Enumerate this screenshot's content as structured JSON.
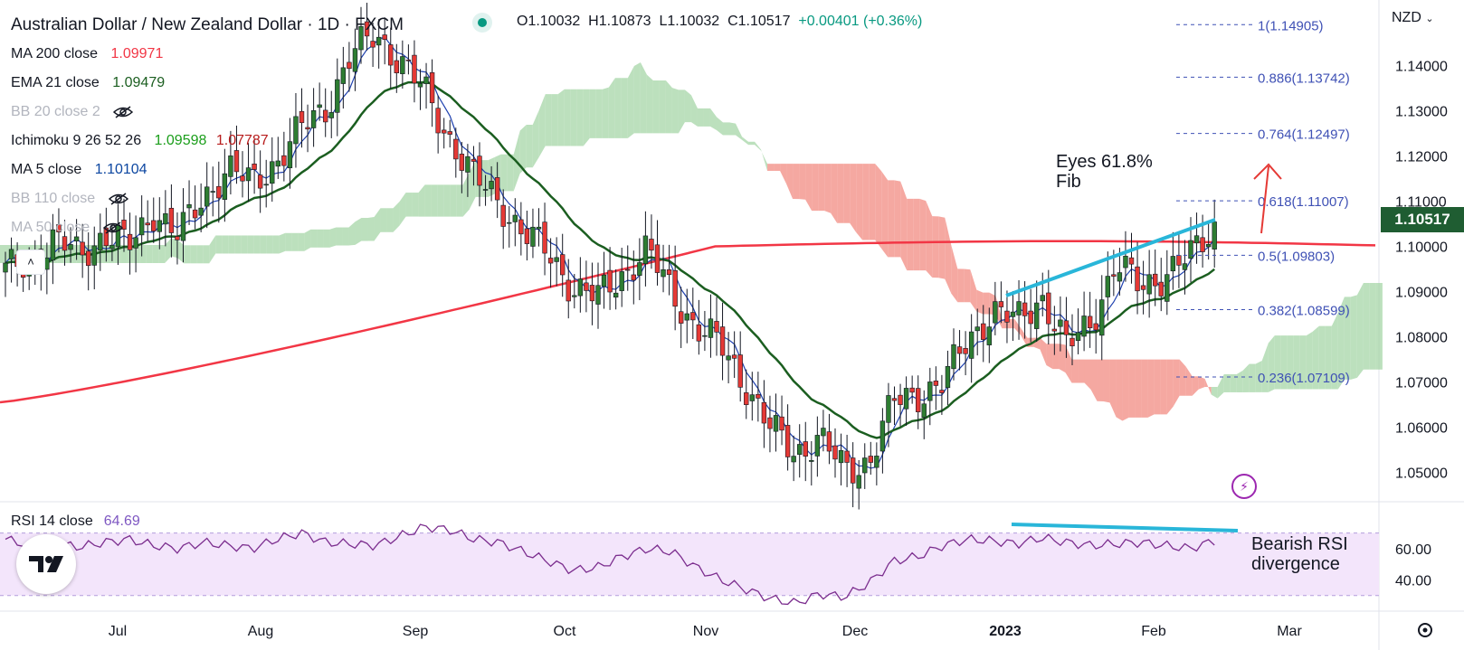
{
  "header": {
    "title": "Australian Dollar / New Zealand Dollar · 1D · FXCM",
    "open": "O1.10032",
    "high": "H1.10873",
    "low": "L1.10032",
    "close": "C1.10517",
    "change": "+0.00401 (+0.36%)"
  },
  "indicators": [
    {
      "label": "MA 200 close",
      "value": "1.09971",
      "color": "#f23645"
    },
    {
      "label": "EMA 21 close",
      "value": "1.09479",
      "color": "#1b5e20"
    },
    {
      "label": "BB 20 close 2",
      "value": "",
      "color": "#b2b5be",
      "hidden": true
    },
    {
      "label": "Ichimoku 9 26 52 26",
      "value": "1.09598",
      "value2": "1.07787",
      "color": "#1b9e1b",
      "color2": "#b71c1c"
    },
    {
      "label": "MA 5 close",
      "value": "1.10104",
      "color": "#0d47a1"
    },
    {
      "label": "BB 110 close",
      "value": "",
      "color": "#b2b5be",
      "hidden": true
    },
    {
      "label": "MA 50 close",
      "value": "",
      "color": "#b2b5be",
      "hidden": true
    }
  ],
  "currency": "NZD",
  "current_price": "1.10517",
  "collapse_icon": "chevron-up-icon",
  "annotations": {
    "fib_note": [
      "Eyes 61.8%",
      "Fib"
    ],
    "rsi_note": [
      "Bearish RSI",
      "divergence"
    ]
  },
  "rsi": {
    "label": "RSI 14 close",
    "value": "64.69"
  },
  "colors": {
    "up": "#2e7d32",
    "down": "#e53935",
    "ma200": "#f23645",
    "ema21": "#1b5e20",
    "ma5": "#1e40af",
    "kumo_bull": "#a5d6a7",
    "kumo_bear": "#f28b82",
    "trend": "#29b6d9",
    "rsi": "#7b2d8e",
    "rsi_band": "#f3e5fb",
    "fib": "#3f51b5"
  },
  "chart_data": {
    "type": "candlestick",
    "symbol": "AUD/NZD",
    "timeframe": "1D",
    "x_axis": {
      "labels": [
        "Jul",
        "Aug",
        "Sep",
        "Oct",
        "Nov",
        "Dec",
        "2023",
        "Feb",
        "Mar"
      ]
    },
    "y_axis": {
      "ticks": [
        "1.14000",
        "1.13000",
        "1.12000",
        "1.11000",
        "1.10000",
        "1.09000",
        "1.08000",
        "1.07000",
        "1.06000",
        "1.05000"
      ],
      "ylim": [
        1.0435,
        1.1545
      ]
    },
    "fib_levels": [
      {
        "label": "1(1.14905)",
        "value": 1.14905
      },
      {
        "label": "0.886(1.13742)",
        "value": 1.13742
      },
      {
        "label": "0.764(1.12497)",
        "value": 1.12497
      },
      {
        "label": "0.618(1.11007)",
        "value": 1.11007
      },
      {
        "label": "0.5(1.09803)",
        "value": 1.09803
      },
      {
        "label": "0.382(1.08599)",
        "value": 1.08599
      },
      {
        "label": "0.236(1.07109)",
        "value": 1.07109
      }
    ],
    "price_path": [
      1.0945,
      1.097,
      1.101,
      1.0985,
      1.1025,
      1.1,
      1.108,
      1.102,
      1.111,
      1.117,
      1.114,
      1.119,
      1.126,
      1.131,
      1.142,
      1.147,
      1.141,
      1.134,
      1.124,
      1.115,
      1.11,
      1.103,
      1.0985,
      1.091,
      1.0885,
      1.094,
      1.099,
      1.09,
      1.082,
      1.078,
      1.0695,
      1.0595,
      1.0545,
      1.0575,
      1.0505,
      1.0525,
      1.0655,
      1.0675,
      1.0695,
      1.0795,
      1.0855,
      1.0835,
      1.089,
      1.0775,
      1.0835,
      1.096,
      1.091,
      1.094,
      1.0975,
      1.1045
    ],
    "rsi_ylim": [
      20,
      90
    ],
    "rsi_ticks": [
      "60.00",
      "40.00"
    ],
    "rsi_band": [
      70,
      30
    ],
    "rsi_path": [
      66,
      62,
      63,
      61,
      64,
      66,
      62,
      60,
      64,
      62,
      60,
      66,
      70,
      64,
      63,
      62,
      68,
      74,
      72,
      66,
      64,
      58,
      52,
      46,
      48,
      55,
      60,
      58,
      48,
      40,
      34,
      28,
      25,
      31,
      29,
      38,
      52,
      55,
      62,
      66,
      65,
      63,
      67,
      64,
      62,
      63,
      64,
      62,
      60,
      65
    ]
  }
}
